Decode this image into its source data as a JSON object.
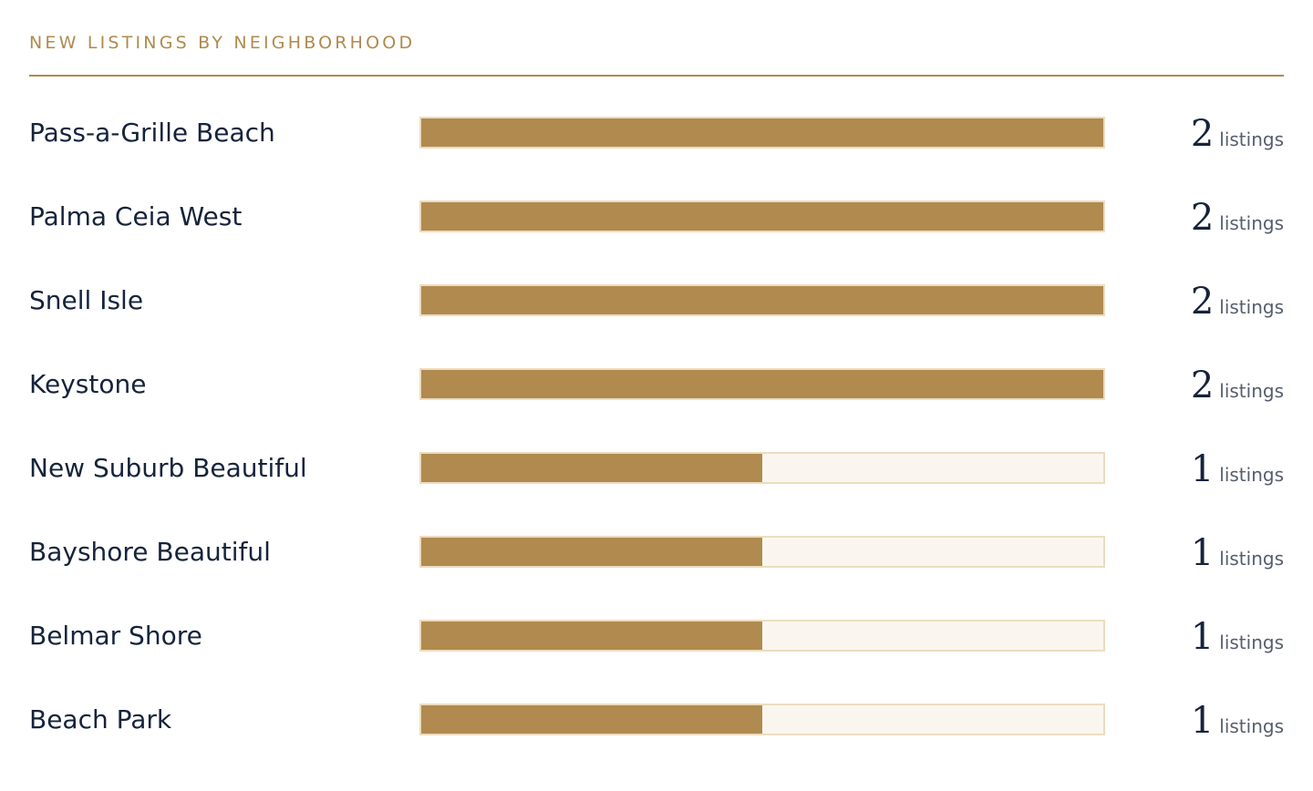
{
  "header": {
    "title": "NEW LISTINGS BY NEIGHBORHOOD"
  },
  "colors": {
    "accent": "#b08a4e",
    "track": "#faf6ef",
    "track_border": "#ecdcbf",
    "text": "#16233b",
    "muted": "#555e6e"
  },
  "unit_label": "listings",
  "chart_data": {
    "type": "bar",
    "orientation": "horizontal",
    "title": "NEW LISTINGS BY NEIGHBORHOOD",
    "categories": [
      "Pass-a-Grille Beach",
      "Palma Ceia West",
      "Snell Isle",
      "Keystone",
      "New Suburb Beautiful",
      "Bayshore Beautiful",
      "Belmar Shore",
      "Beach Park"
    ],
    "values": [
      2,
      2,
      2,
      2,
      1,
      1,
      1,
      1
    ],
    "xlim": [
      0,
      2
    ],
    "value_suffix": "listings",
    "grid": false,
    "legend": "none"
  }
}
